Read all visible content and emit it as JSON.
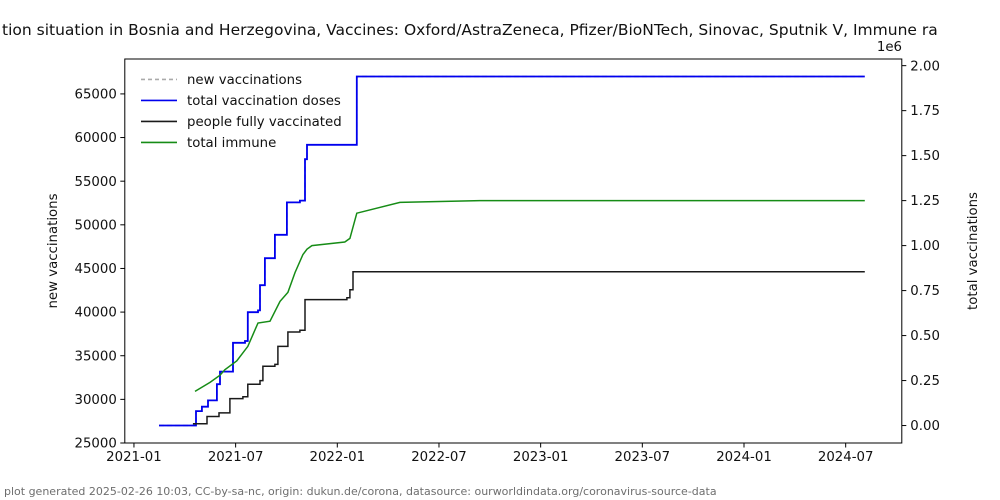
{
  "footer": {
    "text": "plot generated 2025-02-26 10:03, CC-by-sa-nc, origin: dukun.de/corona, datasource: ourworldindata.org/coronavirus-source-data"
  },
  "chart_data": {
    "type": "line",
    "title_visible": "tion situation in Bosnia and Herzegovina, Vaccines: Oxford/AstraZeneca, Pfizer/BioNTech, Sinovac, Sputnik V, Immune ra",
    "grid": false,
    "legend_position": "upper left",
    "x_axis": {
      "range": [
        2020.955,
        2024.776
      ],
      "ticks": [
        2021.0,
        2021.5,
        2022.0,
        2022.5,
        2023.0,
        2023.5,
        2024.0,
        2024.5
      ],
      "tick_labels": [
        "2021-01",
        "2021-07",
        "2022-01",
        "2022-07",
        "2023-01",
        "2023-07",
        "2024-01",
        "2024-07"
      ]
    },
    "left_axis": {
      "label": "new vaccinations",
      "range": [
        25000,
        69000
      ],
      "ticks": [
        25000,
        30000,
        35000,
        40000,
        45000,
        50000,
        55000,
        60000,
        65000
      ],
      "tick_labels": [
        "25000",
        "30000",
        "35000",
        "40000",
        "45000",
        "50000",
        "55000",
        "60000",
        "65000"
      ]
    },
    "right_axis": {
      "label": "total vaccinations",
      "offset_text": "1e6",
      "range": [
        -0.097,
        2.037
      ],
      "ticks": [
        0.0,
        0.25,
        0.5,
        0.75,
        1.0,
        1.25,
        1.5,
        1.75,
        2.0
      ],
      "tick_labels": [
        "0.00",
        "0.25",
        "0.50",
        "0.75",
        "1.00",
        "1.25",
        "1.50",
        "1.75",
        "2.00"
      ]
    },
    "legend": [
      {
        "label": "new vaccinations",
        "color": "#aaaaaa",
        "dash": true
      },
      {
        "label": "total vaccination doses",
        "color": "#0000ee",
        "dash": false
      },
      {
        "label": "people fully vaccinated",
        "color": "#1a1a1a",
        "dash": false
      },
      {
        "label": "total immune",
        "color": "#168c16",
        "dash": false
      }
    ],
    "series": [
      {
        "name": "new vaccinations",
        "axis": "left",
        "color": "#aaaaaa",
        "dash": true,
        "step": true,
        "points": [
          [
            2021.123,
            27000
          ],
          [
            2021.29,
            27000
          ],
          [
            2021.305,
            28650
          ],
          [
            2021.334,
            29160
          ],
          [
            2021.364,
            29890
          ],
          [
            2021.408,
            31740
          ],
          [
            2021.423,
            33190
          ],
          [
            2021.487,
            36490
          ],
          [
            2021.546,
            36690
          ],
          [
            2021.56,
            39990
          ],
          [
            2021.61,
            40200
          ],
          [
            2021.62,
            43080
          ],
          [
            2021.644,
            46180
          ],
          [
            2021.693,
            48860
          ],
          [
            2021.752,
            52570
          ],
          [
            2021.816,
            52770
          ],
          [
            2021.841,
            57520
          ],
          [
            2021.851,
            59170
          ],
          [
            2022.087,
            59170
          ],
          [
            2022.096,
            67000
          ],
          [
            2024.594,
            67000
          ]
        ]
      },
      {
        "name": "total vaccination doses",
        "axis": "right",
        "color": "#0000ee",
        "dash": false,
        "step": true,
        "points": [
          [
            2021.123,
            0.0
          ],
          [
            2021.29,
            0.0
          ],
          [
            2021.305,
            0.08
          ],
          [
            2021.334,
            0.105
          ],
          [
            2021.364,
            0.14
          ],
          [
            2021.408,
            0.23
          ],
          [
            2021.423,
            0.3
          ],
          [
            2021.487,
            0.46
          ],
          [
            2021.546,
            0.47
          ],
          [
            2021.56,
            0.63
          ],
          [
            2021.61,
            0.64
          ],
          [
            2021.62,
            0.78
          ],
          [
            2021.644,
            0.93
          ],
          [
            2021.693,
            1.06
          ],
          [
            2021.752,
            1.24
          ],
          [
            2021.816,
            1.25
          ],
          [
            2021.841,
            1.48
          ],
          [
            2021.851,
            1.56
          ],
          [
            2022.087,
            1.56
          ],
          [
            2022.096,
            1.94
          ],
          [
            2024.594,
            1.94
          ]
        ]
      },
      {
        "name": "people fully vaccinated",
        "axis": "right",
        "color": "#1a1a1a",
        "dash": false,
        "step": true,
        "points": [
          [
            2021.29,
            0.01
          ],
          [
            2021.359,
            0.05
          ],
          [
            2021.418,
            0.07
          ],
          [
            2021.472,
            0.15
          ],
          [
            2021.536,
            0.16
          ],
          [
            2021.56,
            0.23
          ],
          [
            2021.62,
            0.25
          ],
          [
            2021.634,
            0.33
          ],
          [
            2021.693,
            0.34
          ],
          [
            2021.708,
            0.44
          ],
          [
            2021.757,
            0.52
          ],
          [
            2021.816,
            0.53
          ],
          [
            2021.841,
            0.7
          ],
          [
            2022.047,
            0.71
          ],
          [
            2022.062,
            0.755
          ],
          [
            2022.077,
            0.855
          ],
          [
            2024.594,
            0.855
          ]
        ]
      },
      {
        "name": "total immune",
        "axis": "right",
        "color": "#168c16",
        "dash": false,
        "step": false,
        "points": [
          [
            2021.3,
            0.19
          ],
          [
            2021.374,
            0.24
          ],
          [
            2021.423,
            0.28
          ],
          [
            2021.447,
            0.31
          ],
          [
            2021.506,
            0.36
          ],
          [
            2021.56,
            0.44
          ],
          [
            2021.61,
            0.57
          ],
          [
            2021.669,
            0.58
          ],
          [
            2021.718,
            0.69
          ],
          [
            2021.757,
            0.74
          ],
          [
            2021.792,
            0.85
          ],
          [
            2021.831,
            0.95
          ],
          [
            2021.851,
            0.98
          ],
          [
            2021.875,
            1.0
          ],
          [
            2022.037,
            1.02
          ],
          [
            2022.062,
            1.04
          ],
          [
            2022.096,
            1.18
          ],
          [
            2022.308,
            1.24
          ],
          [
            2022.701,
            1.25
          ],
          [
            2024.594,
            1.25
          ]
        ]
      }
    ]
  }
}
